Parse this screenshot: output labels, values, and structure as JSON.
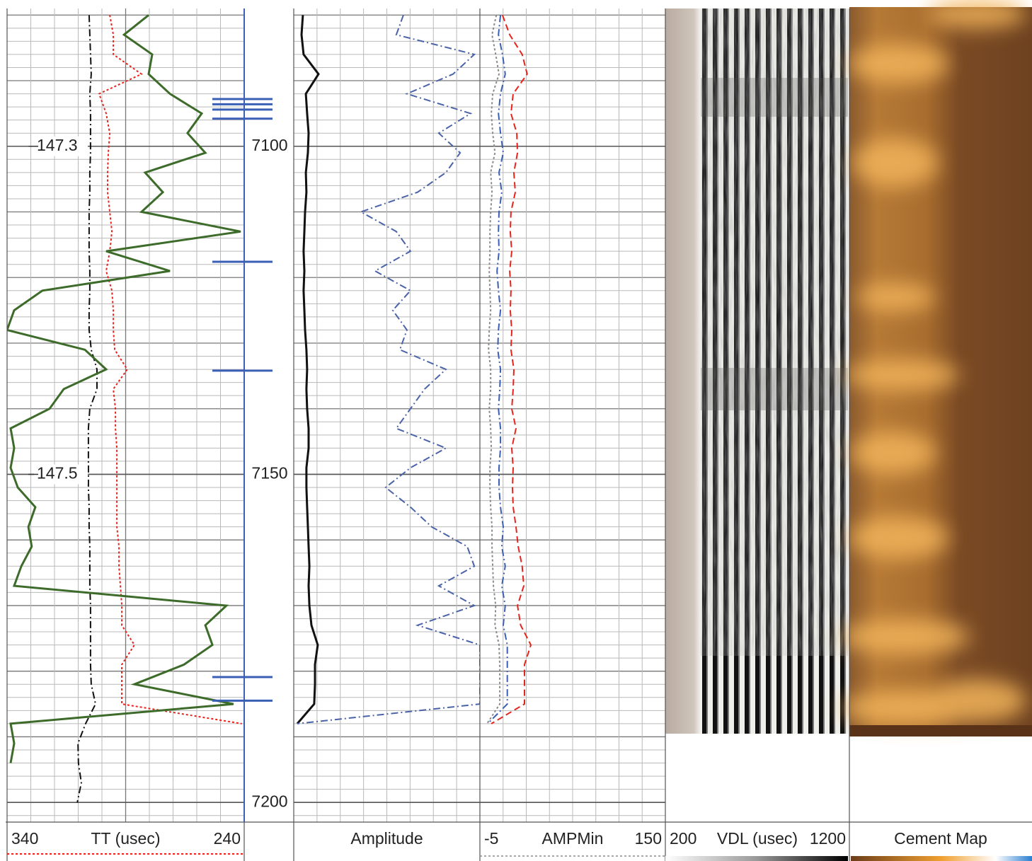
{
  "chart_data": [
    {
      "type": "line",
      "x_label": "TT (usec)",
      "xlim": [
        340,
        240
      ],
      "xticks": [
        340,
        240
      ],
      "annotations": [
        "147.3",
        "147.5"
      ],
      "series": [
        {
          "color": "#e8231c",
          "style": "dotted",
          "values": [
            296.7,
            295.2,
            295.2,
            283.3,
            301.2,
            298.2,
            296.7,
            297.3,
            297.6,
            297.6,
            296.7,
            295.8,
            296.7,
            298.2,
            295.8,
            295.2,
            295.2,
            294.6,
            289.3,
            295.2,
            294.3,
            294.3,
            293.7,
            293.7,
            293.7,
            293.7,
            293.7,
            292.8,
            292.8,
            292.2,
            291.6,
            291.6,
            286.3,
            291.6,
            291.6,
            291.6,
            241,
            null,
            null,
            null,
            null
          ]
        },
        {
          "color": "#111111",
          "style": "dash-dot",
          "values": [
            305.4,
            305.1,
            304.8,
            304.5,
            305.1,
            304.8,
            304.8,
            304.8,
            305.1,
            305.1,
            305.4,
            305.4,
            305.4,
            305.1,
            305.1,
            305.4,
            305.4,
            304.5,
            302.1,
            302.1,
            305.1,
            305.7,
            305.7,
            305.7,
            305.7,
            305.4,
            305.4,
            305.1,
            305.1,
            305.1,
            304.8,
            304.8,
            304.8,
            304.8,
            304.5,
            302.7,
            306.9,
            310.1,
            309.9,
            308.7,
            310.4
          ]
        },
        {
          "color": "#3d6b2a",
          "style": "solid",
          "values": [
            280.3,
            290.7,
            278.8,
            280.3,
            271.3,
            257.9,
            263.9,
            256.4,
            281.8,
            274.3,
            283.3,
            241.5,
            298.2,
            271.3,
            325.1,
            337,
            340,
            307.2,
            298.2,
            316.1,
            322.1,
            338.5,
            337,
            338.5,
            335.5,
            328.1,
            331,
            329.6,
            334,
            337,
            247.5,
            256.4,
            253.4,
            265.4,
            286.3,
            244.5,
            338.5,
            337,
            338.5,
            null,
            null
          ]
        }
      ]
    },
    {
      "type": "depth",
      "ylim": [
        7079,
        7203
      ],
      "yticks": [
        7100,
        7150,
        7200
      ],
      "color": "#3a5fb5",
      "y": [
        7080,
        7083,
        7086,
        7089,
        7092,
        7095,
        7098,
        7101,
        7104,
        7107,
        7110,
        7113,
        7116,
        7119,
        7122,
        7125,
        7128,
        7131,
        7134,
        7137,
        7140,
        7143,
        7146,
        7149,
        7152,
        7155,
        7158,
        7161,
        7164,
        7167,
        7170,
        7173,
        7176,
        7179,
        7182,
        7185,
        7188,
        7191,
        7194,
        7197,
        7200
      ],
      "markers": [
        7092.8,
        7093.6,
        7094.4,
        7095.8,
        7117.6,
        7134.2,
        7180.9,
        7184.5
      ]
    },
    {
      "type": "line",
      "x_label": "Amplitude",
      "xlim": [
        0,
        100
      ],
      "series": [
        {
          "color": "#111111",
          "style": "solid",
          "values": [
            4.9,
            4.2,
            5.3,
            13.3,
            6.5,
            7.2,
            8,
            7.6,
            6.5,
            6.8,
            6.1,
            5.7,
            5.3,
            5.7,
            5.3,
            5.7,
            6.1,
            6.8,
            7.2,
            6.8,
            7.2,
            8,
            8,
            6.8,
            6.8,
            7.2,
            7.6,
            8,
            8.4,
            8,
            8.4,
            9.5,
            12.9,
            11.4,
            11.4,
            11,
            1.9,
            null,
            null,
            null,
            null
          ]
        },
        {
          "color": "#4a63a8",
          "style": "dash-dot",
          "values": [
            58.9,
            55.1,
            97,
            85.6,
            60.8,
            95,
            77.9,
            89.4,
            81.7,
            66.5,
            36.1,
            55.1,
            62.7,
            43.7,
            62.7,
            53.2,
            60.8,
            57,
            81.7,
            70.3,
            62.7,
            55.1,
            81.7,
            62.7,
            49.4,
            62.7,
            74.1,
            93.2,
            97,
            77.9,
            97,
            66.5,
            100,
            100,
            100,
            100,
            1.9,
            null,
            null,
            null,
            null
          ]
        }
      ]
    },
    {
      "type": "line",
      "x_label": "AMPMin",
      "xlim": [
        -5,
        150
      ],
      "xticks": [
        -5,
        150
      ],
      "series": [
        {
          "color": "#e8231c",
          "style": "dashed",
          "values": [
            13.9,
            19.9,
            30.3,
            34.5,
            22.8,
            21.0,
            25.8,
            26.4,
            23.4,
            24.6,
            21.0,
            20.4,
            21.6,
            19.9,
            21.0,
            20.4,
            21.6,
            21.0,
            23.4,
            22.8,
            21.6,
            25.2,
            21.6,
            22.8,
            22.2,
            22.8,
            25.2,
            27.0,
            30.3,
            31.7,
            26.4,
            29.1,
            37.6,
            32.3,
            32.3,
            32.3,
            4.5,
            null,
            null,
            null,
            null
          ]
        },
        {
          "color": "#3a5fb5",
          "style": "dash-dot",
          "values": [
            12.2,
            10.5,
            13.9,
            16.2,
            12.2,
            10.5,
            12.2,
            14.5,
            11.0,
            13.3,
            11.0,
            10.5,
            11.0,
            9.3,
            10.5,
            12.2,
            10.5,
            9.9,
            12.2,
            11.6,
            10.5,
            12.2,
            12.2,
            11.0,
            11.0,
            12.2,
            14.5,
            13.3,
            16.2,
            13.3,
            16.2,
            14.5,
            17.9,
            17.9,
            17.9,
            17.9,
            1.5,
            null,
            null,
            null,
            null
          ]
        },
        {
          "color": "#8a8a8a",
          "style": "dotted",
          "values": [
            8.7,
            5.1,
            8.2,
            11.0,
            5.7,
            4.5,
            5.7,
            7.6,
            4.0,
            5.1,
            4.0,
            3.4,
            3.4,
            2.8,
            3.4,
            4.0,
            2.8,
            2.2,
            4.0,
            4.0,
            2.8,
            4.0,
            4.5,
            3.4,
            3.4,
            4.0,
            5.1,
            5.1,
            5.7,
            6.3,
            8.2,
            7.6,
            11.0,
            11.6,
            11.6,
            11.6,
            1.0,
            null,
            null,
            null,
            null
          ]
        }
      ]
    },
    {
      "type": "vdl",
      "x_label": "VDL (usec)",
      "xlim": [
        200,
        1200
      ],
      "xticks": [
        200,
        1200
      ]
    },
    {
      "type": "cement",
      "x_label": "Cement Map"
    }
  ]
}
